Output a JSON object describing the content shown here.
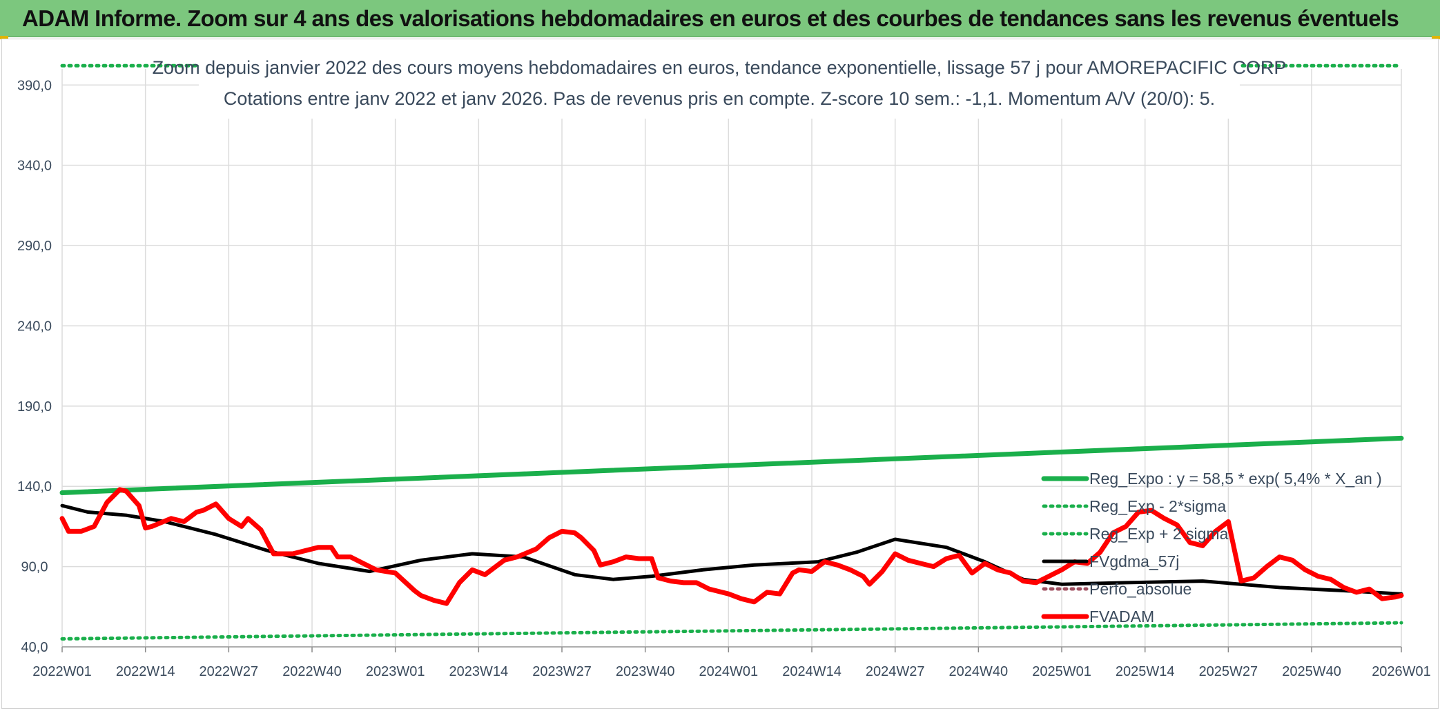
{
  "header": {
    "title": "ADAM Informe. Zoom sur 4 ans des valorisations hebdomadaires en euros et des courbes de tendances sans les revenus éventuels"
  },
  "colors": {
    "banner": "#7cc77e",
    "reg_expo": "#1aaf4b",
    "sigma_bands": "#1aaf4b",
    "fvgdma": "#000000",
    "fvadam": "#ff0000",
    "perfo": "#a05060",
    "grid": "#dcdcdc",
    "text": "#3a4a5c"
  },
  "chart_data": {
    "type": "line",
    "title": "Zoom depuis janvier 2022 des cours moyens hebdomadaires en euros, tendance exponentielle, lissage 57 j pour AMOREPACIFIC CORP",
    "subtitle": "Cotations entre janv 2022 et janv 2026. Pas de revenus pris en compte. Z-score 10 sem.: -1,1. Momentum A/V (20/0): 5.",
    "xlabel": "",
    "ylabel": "",
    "ylim": [
      40,
      400
    ],
    "yticks": [
      "40,0",
      "90,0",
      "140,0",
      "190,0",
      "240,0",
      "290,0",
      "340,0",
      "390,0"
    ],
    "ytick_values": [
      40,
      90,
      140,
      190,
      240,
      290,
      340,
      390
    ],
    "xticks": [
      "2022W01",
      "2022W14",
      "2022W27",
      "2022W40",
      "2023W01",
      "2023W14",
      "2023W27",
      "2023W40",
      "2024W01",
      "2024W14",
      "2024W27",
      "2024W40",
      "2025W01",
      "2025W14",
      "2025W27",
      "2025W40",
      "2026W01"
    ],
    "x_unit": "week index (0 = 2022W01, 209 = 2026W01)",
    "grid": true,
    "legend_position": "right",
    "series": [
      {
        "name": "Reg_Expo : y = 58,5 * exp( 5,4% *  X_an )",
        "style": "solid-thick",
        "color": "#1aaf4b",
        "x": [
          0,
          209
        ],
        "values": [
          136,
          170
        ]
      },
      {
        "name": "Reg_Exp - 2*sigma",
        "style": "dotted",
        "color": "#1aaf4b",
        "x": [
          0,
          209
        ],
        "values": [
          45,
          55
        ]
      },
      {
        "name": "Reg_Exp + 2 sigma",
        "style": "dotted",
        "color": "#1aaf4b",
        "x": [
          0,
          209
        ],
        "values": [
          402,
          402
        ]
      },
      {
        "name": "FVgdma_57j",
        "style": "solid",
        "color": "#000000",
        "x": [
          0,
          4,
          10,
          16,
          24,
          32,
          40,
          48,
          56,
          64,
          72,
          80,
          86,
          92,
          100,
          108,
          118,
          124,
          130,
          138,
          144,
          150,
          156,
          166,
          178,
          190,
          200,
          209
        ],
        "values": [
          128,
          124,
          122,
          118,
          110,
          100,
          92,
          87,
          94,
          98,
          96,
          85,
          82,
          84,
          88,
          91,
          93,
          99,
          107,
          102,
          93,
          82,
          79,
          80,
          81,
          77,
          75,
          73
        ]
      },
      {
        "name": "Perfo_absolue",
        "style": "dotted",
        "color": "#a05060",
        "x": [],
        "values": []
      },
      {
        "name": "FVADAM",
        "style": "solid-thick",
        "color": "#ff0000",
        "x": [
          0,
          1,
          3,
          5,
          7,
          9,
          10,
          12,
          13,
          14,
          17,
          19,
          21,
          22,
          24,
          26,
          28,
          29,
          31,
          33,
          36,
          40,
          42,
          43,
          45,
          47,
          49,
          52,
          55,
          56,
          58,
          60,
          62,
          64,
          66,
          69,
          71,
          74,
          76,
          78,
          80,
          81,
          83,
          84,
          86,
          88,
          90,
          92,
          93,
          95,
          97,
          99,
          101,
          102,
          104,
          106,
          108,
          110,
          112,
          114,
          115,
          117,
          119,
          121,
          123,
          125,
          126,
          128,
          130,
          132,
          134,
          136,
          138,
          140,
          142,
          144,
          146,
          148,
          150,
          152,
          154,
          156,
          158,
          160,
          162,
          164,
          166,
          168,
          170,
          172,
          174,
          176,
          178,
          180,
          182,
          184,
          186,
          188,
          190,
          192,
          194,
          196,
          198,
          200,
          202,
          204,
          206,
          208,
          209
        ],
        "values": [
          120,
          112,
          112,
          115,
          130,
          138,
          137,
          128,
          114,
          115,
          120,
          118,
          124,
          125,
          129,
          120,
          115,
          120,
          113,
          98,
          98,
          102,
          102,
          96,
          96,
          92,
          88,
          86,
          75,
          72,
          69,
          67,
          80,
          88,
          85,
          94,
          96,
          101,
          108,
          112,
          111,
          108,
          100,
          91,
          93,
          96,
          95,
          95,
          83,
          81,
          80,
          80,
          76,
          75,
          73,
          70,
          68,
          74,
          73,
          86,
          88,
          87,
          93,
          91,
          88,
          84,
          79,
          87,
          98,
          94,
          92,
          90,
          95,
          97,
          86,
          92,
          88,
          86,
          81,
          80,
          84,
          88,
          93,
          92,
          99,
          111,
          115,
          124,
          125,
          120,
          116,
          105,
          103,
          112,
          118,
          81,
          83,
          90,
          96,
          94,
          88,
          84,
          82,
          77,
          74,
          76,
          70,
          71,
          72
        ]
      }
    ]
  }
}
